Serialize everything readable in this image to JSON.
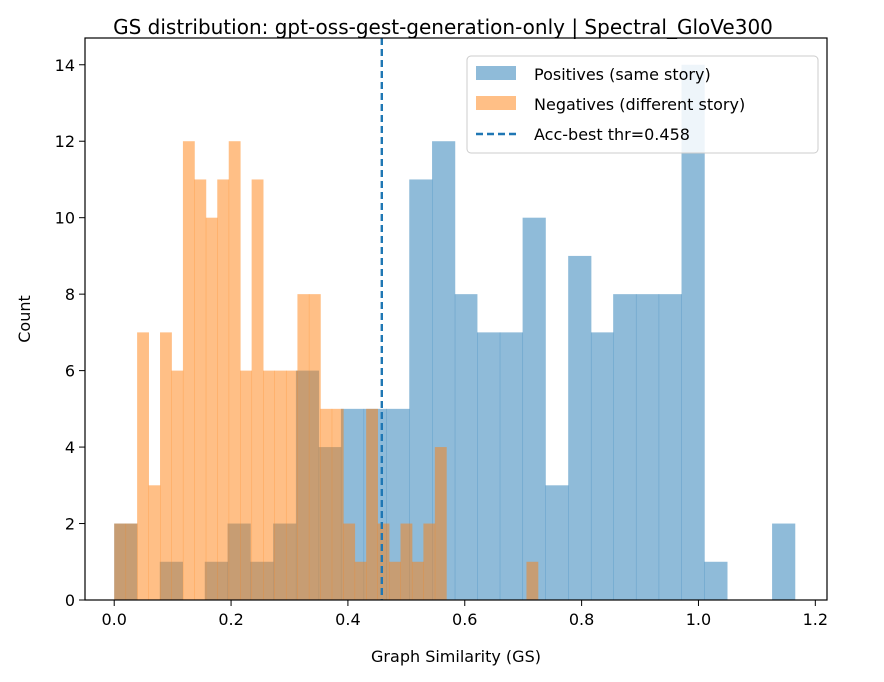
{
  "chart_data": {
    "type": "bar",
    "title": "GS distribution: gpt-oss-gest-generation-only | Spectral_GloVe300",
    "xlabel": "Graph Similarity (GS)",
    "ylabel": "Count",
    "xlim": [
      -0.05,
      1.22
    ],
    "ylim": [
      0,
      14.7
    ],
    "xticks": [
      0.0,
      0.2,
      0.4,
      0.6,
      0.8,
      1.0,
      1.2
    ],
    "xtick_labels": [
      "0.0",
      "0.2",
      "0.4",
      "0.6",
      "0.8",
      "1.0",
      "1.2"
    ],
    "yticks": [
      0,
      2,
      4,
      6,
      8,
      10,
      12,
      14
    ],
    "ytick_labels": [
      "0",
      "2",
      "4",
      "6",
      "8",
      "10",
      "12",
      "14"
    ],
    "grid": false,
    "legend_position": "top-right",
    "threshold": {
      "value": 0.458,
      "label": "Acc-best thr=0.458",
      "color": "#1f77b4",
      "style": "dashed"
    },
    "series": [
      {
        "name": "Positives (same story)",
        "color": "#1f77b4",
        "opacity": 0.5,
        "bins": [
          [
            0.0,
            0.039,
            2
          ],
          [
            0.039,
            0.078,
            0
          ],
          [
            0.078,
            0.117,
            1
          ],
          [
            0.117,
            0.155,
            0
          ],
          [
            0.155,
            0.194,
            1
          ],
          [
            0.194,
            0.233,
            2
          ],
          [
            0.233,
            0.272,
            1
          ],
          [
            0.272,
            0.311,
            2
          ],
          [
            0.311,
            0.35,
            6
          ],
          [
            0.35,
            0.388,
            4
          ],
          [
            0.388,
            0.427,
            5
          ],
          [
            0.427,
            0.466,
            5
          ],
          [
            0.466,
            0.505,
            5
          ],
          [
            0.505,
            0.544,
            11
          ],
          [
            0.544,
            0.583,
            12
          ],
          [
            0.583,
            0.621,
            8
          ],
          [
            0.621,
            0.66,
            7
          ],
          [
            0.66,
            0.699,
            7
          ],
          [
            0.699,
            0.738,
            10
          ],
          [
            0.738,
            0.777,
            3
          ],
          [
            0.777,
            0.816,
            9
          ],
          [
            0.816,
            0.854,
            7
          ],
          [
            0.854,
            0.893,
            8
          ],
          [
            0.893,
            0.932,
            8
          ],
          [
            0.932,
            0.971,
            8
          ],
          [
            0.971,
            1.01,
            14
          ],
          [
            1.01,
            1.049,
            1
          ],
          [
            1.049,
            1.087,
            0
          ],
          [
            1.087,
            1.126,
            0
          ],
          [
            1.126,
            1.165,
            2
          ]
        ]
      },
      {
        "name": "Negatives (different story)",
        "color": "#ff7f0e",
        "opacity": 0.5,
        "bins": [
          [
            0.0,
            0.0196,
            2
          ],
          [
            0.0196,
            0.0392,
            2
          ],
          [
            0.0392,
            0.0588,
            7
          ],
          [
            0.0588,
            0.0784,
            3
          ],
          [
            0.0784,
            0.098,
            7
          ],
          [
            0.098,
            0.1176,
            6
          ],
          [
            0.1176,
            0.1372,
            12
          ],
          [
            0.1372,
            0.1568,
            11
          ],
          [
            0.1568,
            0.1764,
            10
          ],
          [
            0.1764,
            0.196,
            11
          ],
          [
            0.196,
            0.2156,
            12
          ],
          [
            0.2156,
            0.2352,
            6
          ],
          [
            0.2352,
            0.2548,
            11
          ],
          [
            0.2548,
            0.2744,
            6
          ],
          [
            0.2744,
            0.294,
            6
          ],
          [
            0.294,
            0.3136,
            6
          ],
          [
            0.3136,
            0.3332,
            8
          ],
          [
            0.3332,
            0.3528,
            8
          ],
          [
            0.3528,
            0.3724,
            5
          ],
          [
            0.3724,
            0.392,
            5
          ],
          [
            0.392,
            0.4116,
            2
          ],
          [
            0.4116,
            0.4312,
            1
          ],
          [
            0.4312,
            0.4508,
            5
          ],
          [
            0.4508,
            0.4704,
            2
          ],
          [
            0.4704,
            0.49,
            1
          ],
          [
            0.49,
            0.5096,
            2
          ],
          [
            0.5096,
            0.5292,
            1
          ],
          [
            0.5292,
            0.5488,
            2
          ],
          [
            0.5488,
            0.5684,
            4
          ],
          [
            0.5684,
            0.588,
            0
          ],
          [
            0.588,
            0.6076,
            0
          ],
          [
            0.6076,
            0.6272,
            0
          ],
          [
            0.6272,
            0.6468,
            0
          ],
          [
            0.6468,
            0.6664,
            0
          ],
          [
            0.6664,
            0.686,
            0
          ],
          [
            0.686,
            0.7056,
            0
          ],
          [
            0.7056,
            0.7252,
            1
          ]
        ]
      }
    ]
  }
}
